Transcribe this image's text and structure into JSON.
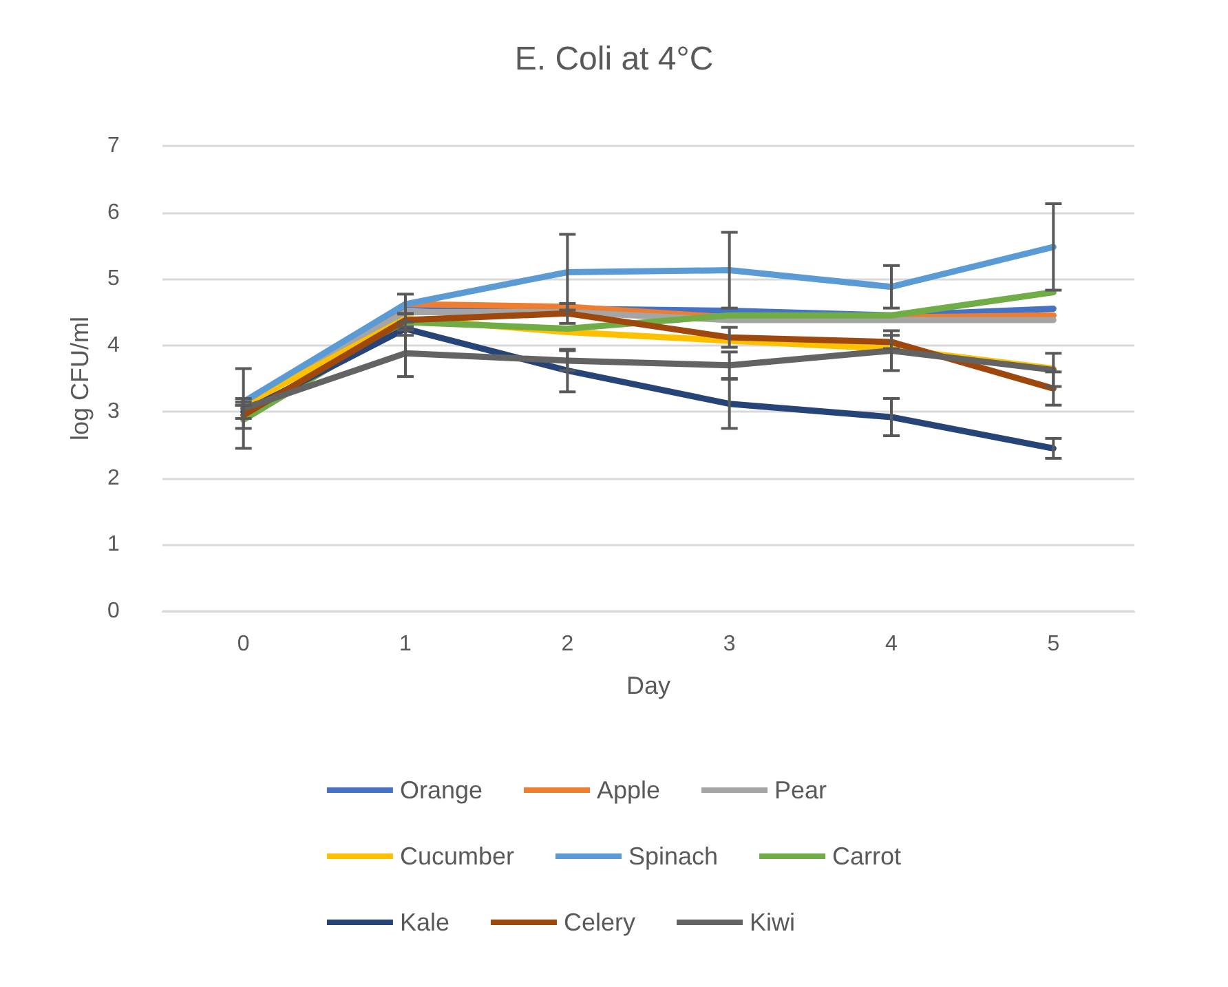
{
  "chart_data": {
    "type": "line",
    "title": "E. Coli at 4°C",
    "xlabel": "Day",
    "ylabel": "log CFU/ml",
    "categories": [
      "0",
      "1",
      "2",
      "3",
      "4",
      "5"
    ],
    "series": [
      {
        "name": "Orange",
        "color": "#4472c4",
        "values": [
          3.1,
          4.6,
          4.55,
          4.52,
          4.45,
          4.55
        ]
      },
      {
        "name": "Apple",
        "color": "#ed7d31",
        "values": [
          3.05,
          4.62,
          4.58,
          4.42,
          4.42,
          4.45
        ]
      },
      {
        "name": "Pear",
        "color": "#a5a5a5",
        "values": [
          3.1,
          4.5,
          4.5,
          4.38,
          4.38,
          4.38
        ]
      },
      {
        "name": "Cucumber",
        "color": "#ffc000",
        "values": [
          3.1,
          4.4,
          4.2,
          4.07,
          3.95,
          3.65
        ]
      },
      {
        "name": "Spinach",
        "color": "#5b9bd5",
        "values": [
          3.15,
          4.62,
          5.1,
          5.13,
          4.88,
          5.48
        ],
        "errors": [
          0.05,
          0.15,
          0.57,
          0.57,
          0.32,
          0.65
        ]
      },
      {
        "name": "Carrot",
        "color": "#70ad47",
        "values": [
          2.88,
          4.35,
          4.25,
          4.45,
          4.45,
          4.8
        ]
      },
      {
        "name": "Kale",
        "color": "#264478",
        "values": [
          3.0,
          4.25,
          3.62,
          3.12,
          2.92,
          2.45
        ],
        "errors": [
          0.1,
          0.1,
          0.32,
          0.37,
          0.28,
          0.15
        ]
      },
      {
        "name": "Celery",
        "color": "#9e480e",
        "values": [
          2.95,
          4.38,
          4.48,
          4.12,
          4.05,
          3.35
        ],
        "errors": [
          0.2,
          0.1,
          0.15,
          0.15,
          0.1,
          0.25
        ]
      },
      {
        "name": "Kiwi",
        "color": "#636363",
        "values": [
          3.05,
          3.88,
          3.77,
          3.7,
          3.92,
          3.63
        ],
        "errors": [
          0.6,
          0.35,
          0.15,
          0.2,
          0.3,
          0.25
        ]
      }
    ],
    "ylim": [
      0,
      7
    ],
    "yticks": [
      0,
      1,
      2,
      3,
      4,
      5,
      6,
      7
    ],
    "grid": "y",
    "legend": "bottom",
    "marker": "none",
    "line_style": "solid"
  }
}
